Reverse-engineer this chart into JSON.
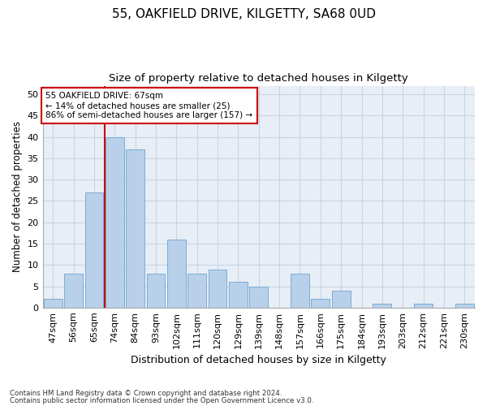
{
  "title": "55, OAKFIELD DRIVE, KILGETTY, SA68 0UD",
  "subtitle": "Size of property relative to detached houses in Kilgetty",
  "xlabel": "Distribution of detached houses by size in Kilgetty",
  "ylabel": "Number of detached properties",
  "categories": [
    "47sqm",
    "56sqm",
    "65sqm",
    "74sqm",
    "84sqm",
    "93sqm",
    "102sqm",
    "111sqm",
    "120sqm",
    "129sqm",
    "139sqm",
    "148sqm",
    "157sqm",
    "166sqm",
    "175sqm",
    "184sqm",
    "193sqm",
    "203sqm",
    "212sqm",
    "221sqm",
    "230sqm"
  ],
  "values": [
    2,
    8,
    27,
    40,
    37,
    8,
    16,
    8,
    9,
    6,
    5,
    0,
    8,
    2,
    4,
    0,
    1,
    0,
    1,
    0,
    1
  ],
  "bar_color": "#b8d0ea",
  "bar_edge_color": "#7aadd4",
  "grid_color": "#c8d4e4",
  "background_color": "#e8eef6",
  "annotation_title": "55 OAKFIELD DRIVE: 67sqm",
  "annotation_line1": "← 14% of detached houses are smaller (25)",
  "annotation_line2": "86% of semi-detached houses are larger (157) →",
  "annotation_box_color": "#ffffff",
  "annotation_border_color": "#cc0000",
  "property_line_color": "#cc0000",
  "property_line_x": 2.5,
  "ylim": [
    0,
    52
  ],
  "yticks": [
    0,
    5,
    10,
    15,
    20,
    25,
    30,
    35,
    40,
    45,
    50
  ],
  "footnote1": "Contains HM Land Registry data © Crown copyright and database right 2024.",
  "footnote2": "Contains public sector information licensed under the Open Government Licence v3.0."
}
